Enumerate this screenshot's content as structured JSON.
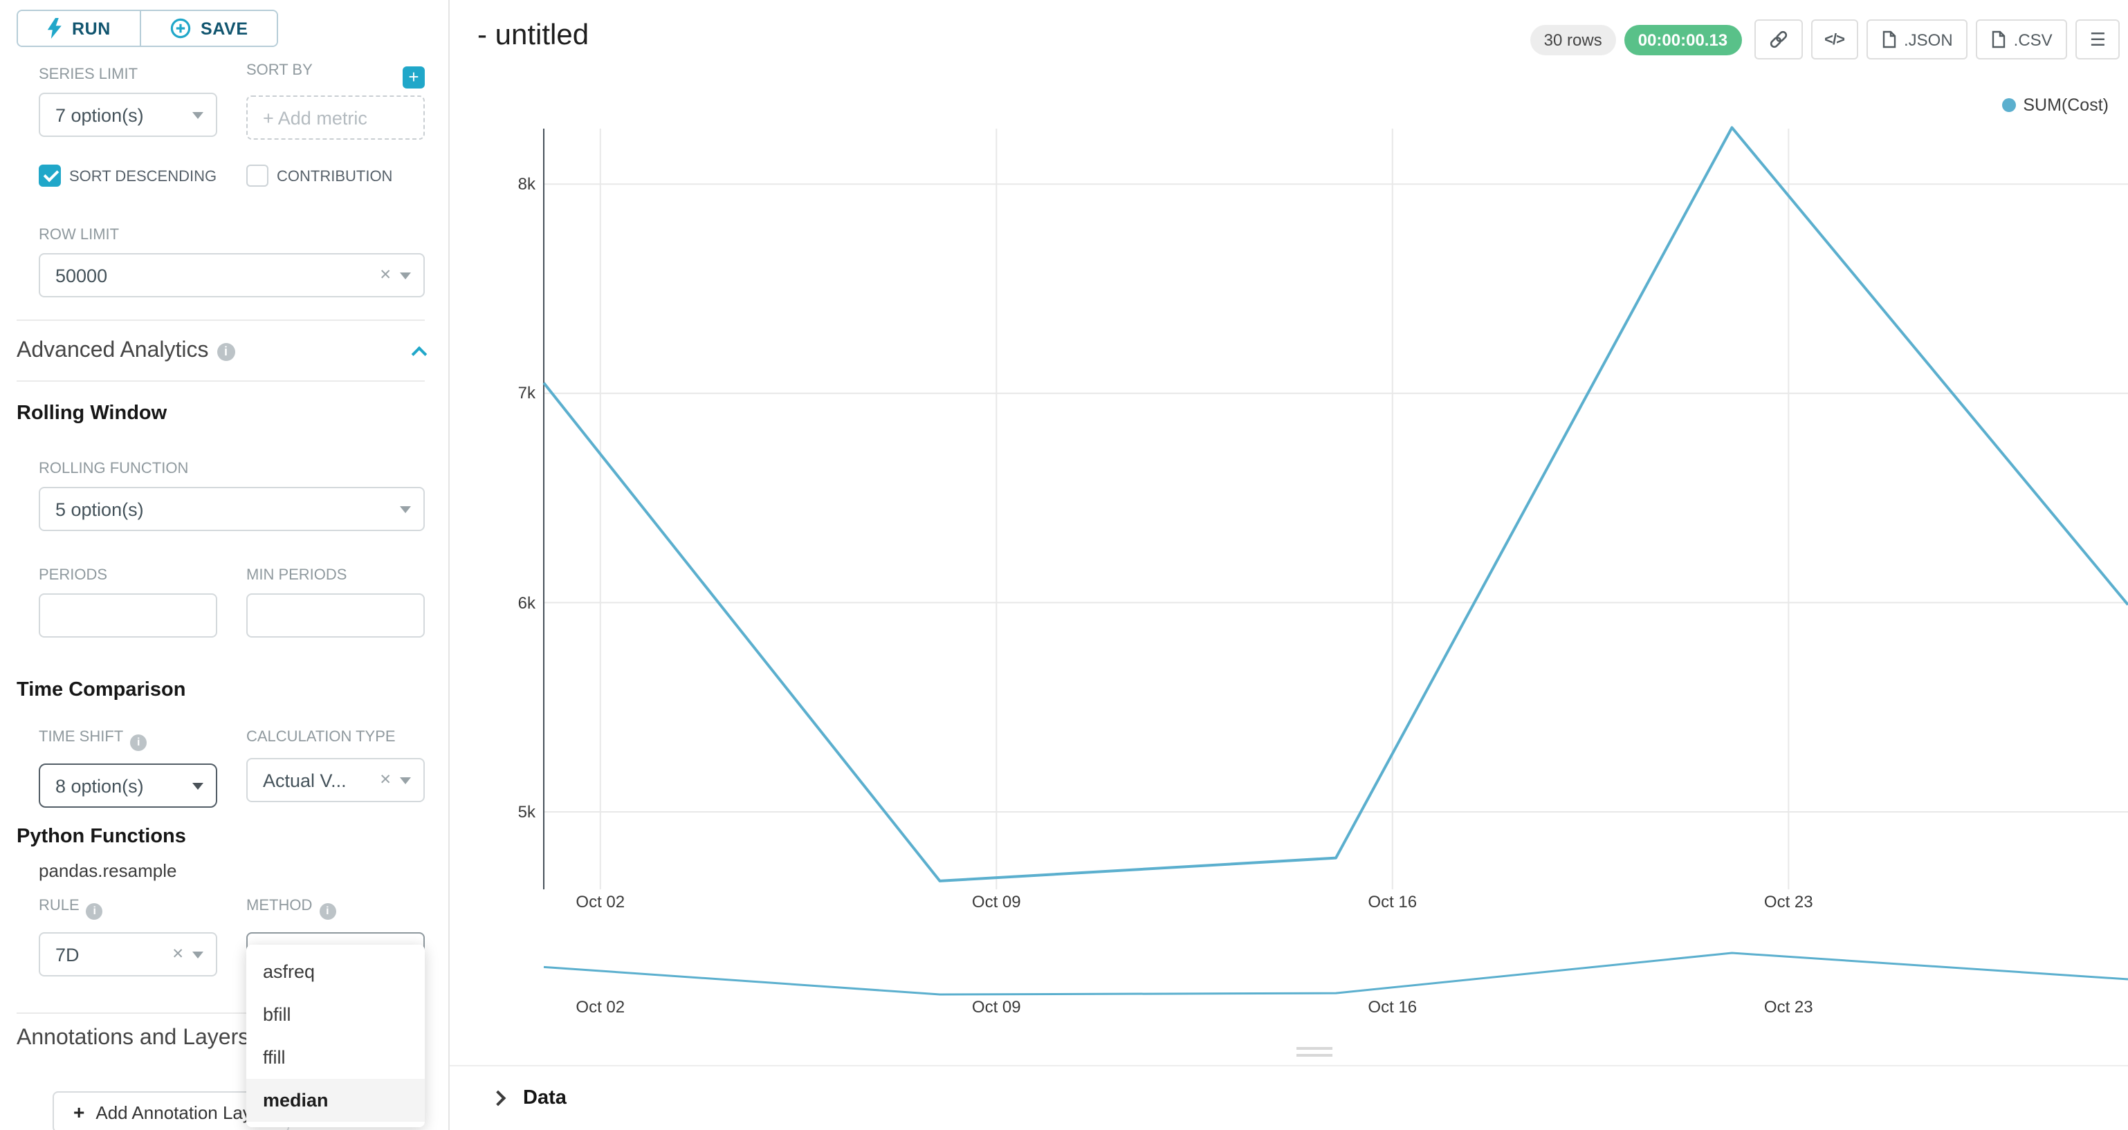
{
  "colors": {
    "accent": "#20A7C9",
    "success": "#59C189",
    "line": "#5BAFCE"
  },
  "icons": {
    "plus": "+",
    "code": "</>",
    "menu": "☰",
    "clear": "✕",
    "info": "i"
  },
  "sidebar": {
    "run_label": "RUN",
    "save_label": "SAVE",
    "series_limit": {
      "label": "SERIES LIMIT",
      "value": "7 option(s)"
    },
    "sort_by": {
      "label": "SORT BY",
      "placeholder": "+ Add metric"
    },
    "sort_descending": {
      "label": "SORT DESCENDING",
      "checked": true
    },
    "contribution": {
      "label": "CONTRIBUTION",
      "checked": false
    },
    "row_limit": {
      "label": "ROW LIMIT",
      "value": "50000"
    },
    "advanced_analytics_title": "Advanced Analytics",
    "rolling_window_title": "Rolling Window",
    "rolling_function": {
      "label": "ROLLING FUNCTION",
      "value": "5 option(s)"
    },
    "periods": {
      "label": "PERIODS",
      "value": ""
    },
    "min_periods": {
      "label": "MIN PERIODS",
      "value": ""
    },
    "time_comparison_title": "Time Comparison",
    "time_shift": {
      "label": "TIME SHIFT",
      "value": "8 option(s)"
    },
    "calculation_type": {
      "label": "CALCULATION TYPE",
      "value": "Actual V..."
    },
    "python_functions_title": "Python Functions",
    "pandas_resample_label": "pandas.resample",
    "rule": {
      "label": "RULE",
      "value": "7D"
    },
    "method": {
      "label": "METHOD",
      "value": "median",
      "options": [
        "asfreq",
        "bfill",
        "ffill",
        "median"
      ],
      "selected_option": "median"
    },
    "annotations_title": "Annotations and Layers",
    "add_annotation_label": "Add Annotation Layer"
  },
  "header": {
    "title": "- untitled",
    "rows_badge": "30 rows",
    "timer_badge": "00:00:00.13",
    "json_label": ".JSON",
    "csv_label": ".CSV"
  },
  "chart_data": {
    "type": "line",
    "legend": "SUM(Cost)",
    "line_color": "#5BAFCE",
    "x_ticks": [
      {
        "label": "Oct 02",
        "day": 1
      },
      {
        "label": "Oct 09",
        "day": 8
      },
      {
        "label": "Oct 16",
        "day": 15
      },
      {
        "label": "Oct 23",
        "day": 22
      }
    ],
    "y_ticks": [
      {
        "label": "8k",
        "value": 8000
      },
      {
        "label": "7k",
        "value": 7000
      },
      {
        "label": "6k",
        "value": 6000
      },
      {
        "label": "5k",
        "value": 5000
      }
    ],
    "xlim_days": [
      0,
      28
    ],
    "ylim": [
      4630,
      8265
    ],
    "mini_ylim": [
      4670,
      8270
    ],
    "grid": true,
    "legend_position": "top-right",
    "series": [
      {
        "name": "SUM(Cost)",
        "days": [
          0,
          7,
          14,
          21,
          28
        ],
        "values": [
          7050,
          4670,
          4780,
          8270,
          5990
        ]
      }
    ]
  },
  "data_panel": {
    "title": "Data"
  }
}
